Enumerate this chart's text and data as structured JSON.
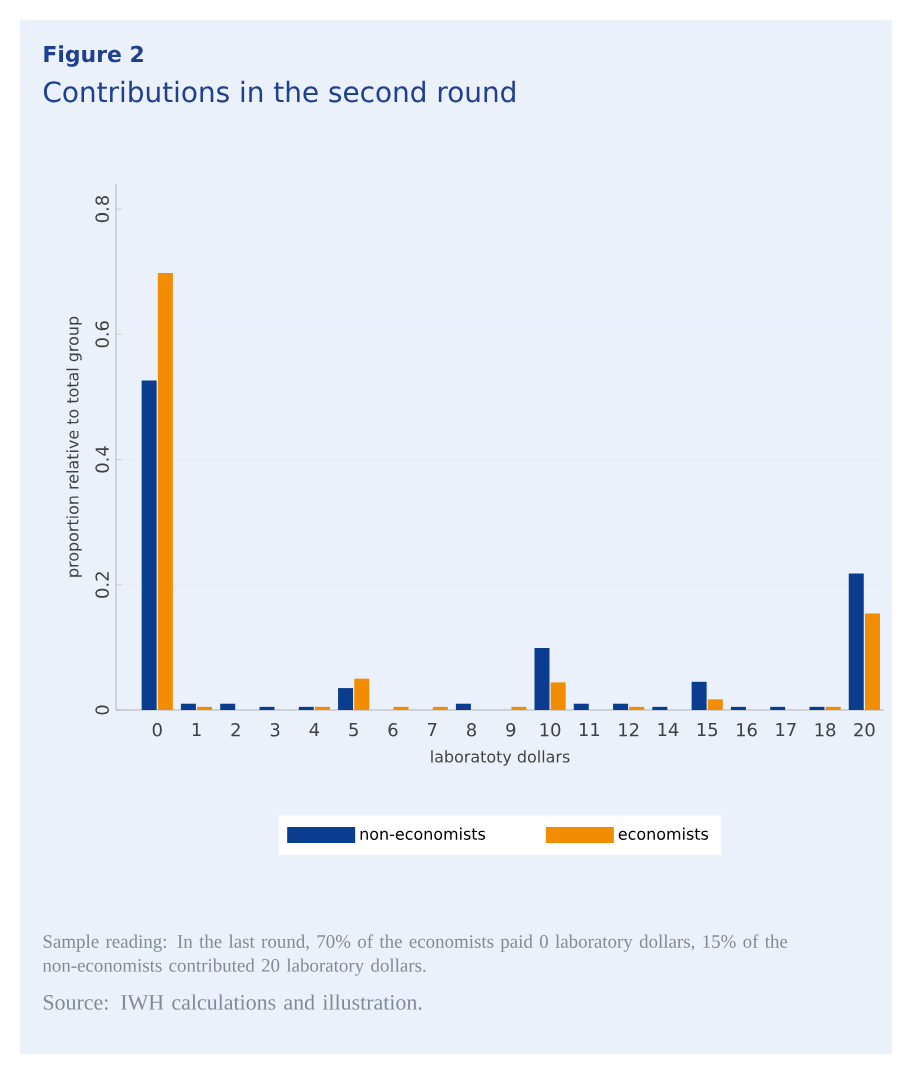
{
  "chart_data": {
    "type": "bar",
    "title": "Figure 2",
    "subtitle": "Contributions in the second round",
    "xlabel": "laboratoty dollars",
    "ylabel": "proportion relative to total group",
    "categories": [
      "0",
      "1",
      "2",
      "3",
      "4",
      "5",
      "6",
      "7",
      "8",
      "9",
      "10",
      "11",
      "12",
      "14",
      "15",
      "16",
      "17",
      "18",
      "20"
    ],
    "series": [
      {
        "name": "non-economists",
        "color": "#0a3d8f",
        "values": [
          0.526,
          0.01,
          0.01,
          0.005,
          0.005,
          0.035,
          0,
          0,
          0.01,
          0,
          0.099,
          0.01,
          0.01,
          0.005,
          0.045,
          0.005,
          0.005,
          0.005,
          0.218
        ]
      },
      {
        "name": "economists",
        "color": "#f28c00",
        "values": [
          0.698,
          0.005,
          0,
          0,
          0.005,
          0.05,
          0.005,
          0.005,
          0,
          0.005,
          0.044,
          0,
          0.005,
          0,
          0.017,
          0,
          0,
          0.005,
          0.154
        ]
      }
    ],
    "ylim": [
      0,
      0.84
    ],
    "yticks": [
      0,
      0.2,
      0.4,
      0.6,
      0.8
    ],
    "grid": "y",
    "legend": "bottom",
    "annotations": [
      "Sample reading: In the last round, 70% of the economists paid 0 laboratory dollars, 15% of the non-economists contributed 20 laboratory dollars.",
      "Source: IWH calculations and illustration."
    ]
  }
}
